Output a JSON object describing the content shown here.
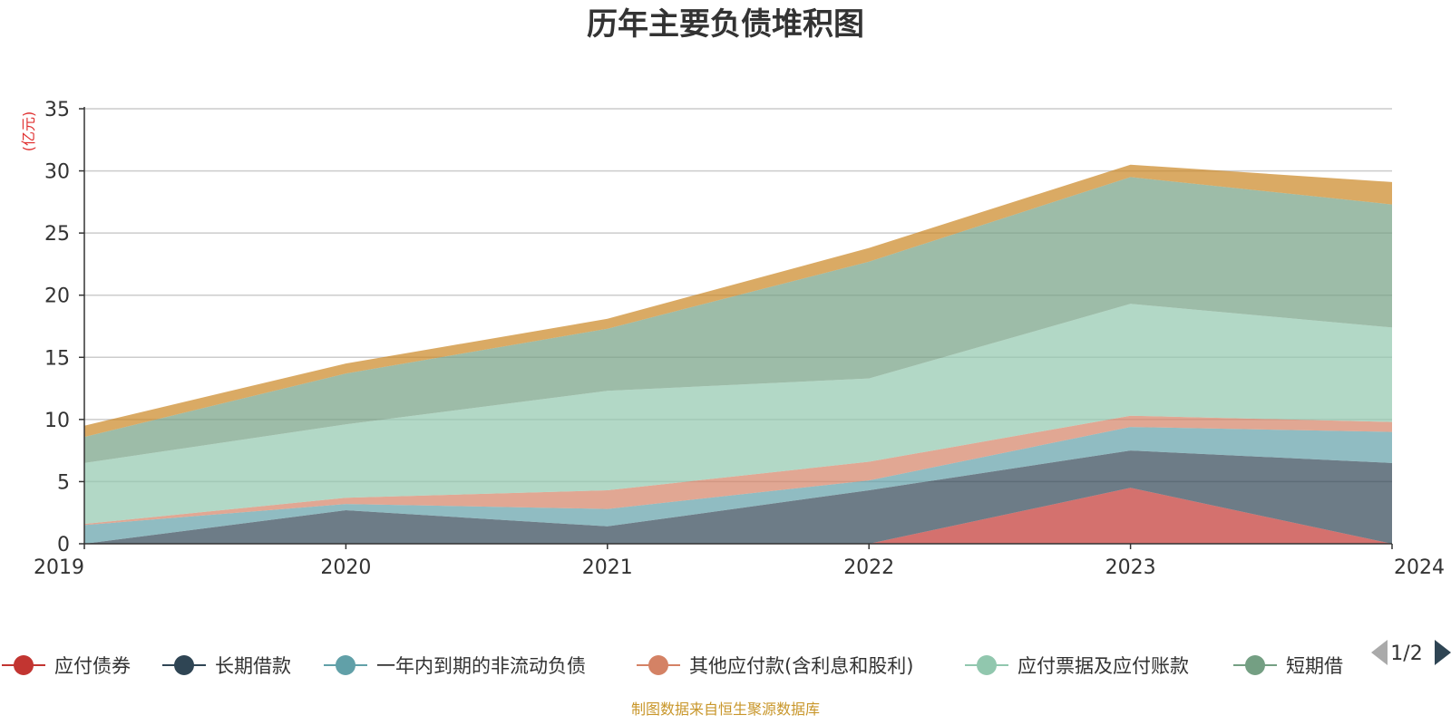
{
  "chart_data": {
    "type": "area",
    "title": "历年主要负债堆积图",
    "y_unit": "(亿元)",
    "stacked": true,
    "x": [
      "2019",
      "2020",
      "2021",
      "2022",
      "2023",
      "2024"
    ],
    "ylim": [
      0,
      35
    ],
    "yticks": [
      "0",
      "5",
      "10",
      "15",
      "20",
      "25",
      "30",
      "35"
    ],
    "grid": true,
    "series": [
      {
        "name": "应付债券",
        "color": "#c23531",
        "values": [
          0,
          0,
          0,
          0,
          4.5,
          0
        ]
      },
      {
        "name": "长期借款",
        "color": "#2f4554",
        "values": [
          0,
          2.7,
          1.4,
          4.3,
          3.0,
          6.5
        ]
      },
      {
        "name": "一年内到期的非流动负债",
        "color": "#61a0a8",
        "values": [
          1.5,
          0.5,
          1.4,
          0.8,
          1.9,
          2.5
        ]
      },
      {
        "name": "其他应付款(含利息和股利)",
        "color": "#d48265",
        "values": [
          0.1,
          0.5,
          1.5,
          1.5,
          0.9,
          0.8
        ]
      },
      {
        "name": "应付票据及应付账款",
        "color": "#91c7ae",
        "values": [
          4.9,
          5.9,
          8.0,
          6.7,
          9.0,
          7.6
        ]
      },
      {
        "name": "短期借款",
        "color": "#749f83",
        "values": [
          2.1,
          4.1,
          5.0,
          9.4,
          10.2,
          9.9
        ]
      },
      {
        "name": "",
        "color": "#ca8622",
        "values": [
          0.9,
          0.8,
          0.8,
          1.1,
          1.0,
          1.8
        ]
      }
    ]
  },
  "legend": {
    "items": [
      {
        "label": "应付债券",
        "color": "#c23531"
      },
      {
        "label": "长期借款",
        "color": "#2f4554"
      },
      {
        "label": "一年内到期的非流动负债",
        "color": "#61a0a8"
      },
      {
        "label": "其他应付款(含利息和股利)",
        "color": "#d48265"
      },
      {
        "label": "应付票据及应付账款",
        "color": "#91c7ae"
      },
      {
        "label": "短期借",
        "color": "#749f83"
      }
    ],
    "page": "1/2",
    "prev_icon": "triangle-left-icon",
    "next_icon": "triangle-right-icon"
  },
  "footer": {
    "source": "制图数据来自恒生聚源数据库"
  }
}
